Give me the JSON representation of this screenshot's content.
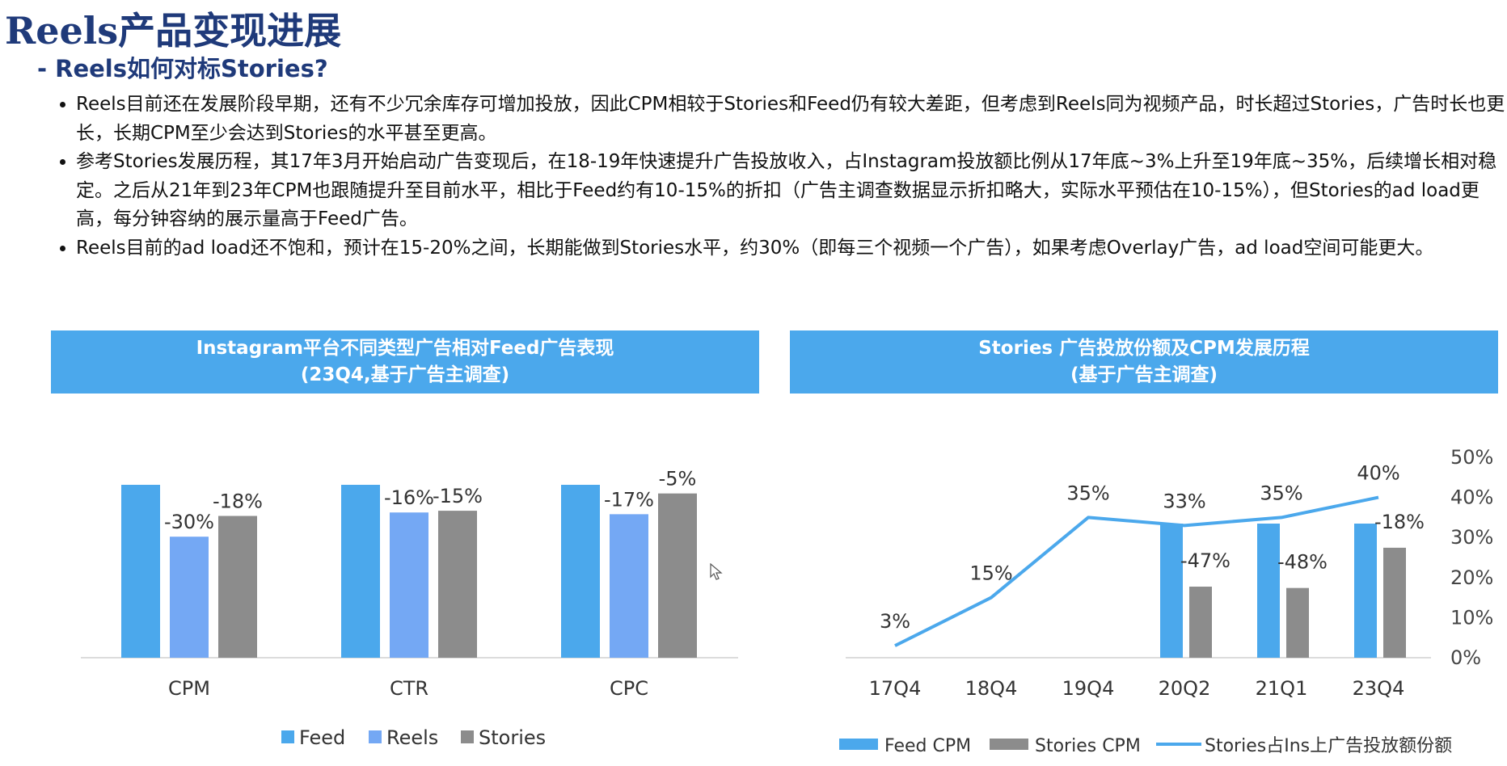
{
  "page": {
    "title": "Reels产品变现进展",
    "subtitle": "- Reels如何对标Stories?",
    "bullets": [
      "Reels目前还在发展阶段早期，还有不少冗余库存可增加投放，因此CPM相较于Stories和Feed仍有较大差距，但考虑到Reels同为视频产品，时长超过Stories，广告时长也更长，长期CPM至少会达到Stories的水平甚至更高。",
      "参考Stories发展历程，其17年3月开始启动广告变现后，在18-19年快速提升广告投放收入，占Instagram投放额比例从17年底~3%上升至19年底~35%，后续增长相对稳定。之后从21年到23年CPM也跟随提升至目前水平，相比于Feed约有10-15%的折扣（广告主调查数据显示折扣略大，实际水平预估在10-15%），但Stories的ad load更高，每分钟容纳的展示量高于Feed广告。",
      "Reels目前的ad load还不饱和，预计在15-20%之间，长期能做到Stories水平，约30%（即每三个视频一个广告），如果考虑Overlay广告，ad load空间可能更大。"
    ]
  },
  "chart_headers": {
    "left": {
      "line1": "Instagram平台不同类型广告相对Feed广告表现",
      "line2": "(23Q4,基于广告主调查)"
    },
    "right": {
      "line1": "Stories 广告投放份额及CPM发展历程",
      "line2": "(基于广告主调查)"
    }
  },
  "colors": {
    "feed": "#4ba8ec",
    "reels": "#74a8f4",
    "stories": "#8c8c8c",
    "line": "#4ba8ec",
    "title": "#1f3a7a",
    "header_bg": "#4ba8ec"
  },
  "chart_data": [
    {
      "type": "bar",
      "categories": [
        "CPM",
        "CTR",
        "CPC"
      ],
      "series": [
        {
          "name": "Feed",
          "values": [
            100,
            100,
            100
          ],
          "labels": [
            "",
            "",
            ""
          ]
        },
        {
          "name": "Reels",
          "values": [
            70,
            84,
            83
          ],
          "labels": [
            "-30%",
            "-16%",
            "-17%"
          ]
        },
        {
          "name": "Stories",
          "values": [
            82,
            85,
            95
          ],
          "labels": [
            "-18%",
            "-15%",
            "-5%"
          ]
        }
      ],
      "legend_position": "bottom",
      "grid": false
    },
    {
      "type": "bar+line",
      "categories": [
        "17Q4",
        "18Q4",
        "19Q4",
        "20Q2",
        "21Q1",
        "23Q4"
      ],
      "bars": [
        {
          "name": "Feed CPM",
          "values": [
            null,
            null,
            null,
            100,
            100,
            100
          ]
        },
        {
          "name": "Stories CPM",
          "values": [
            null,
            null,
            null,
            53,
            52,
            82
          ],
          "labels": [
            "",
            "",
            "",
            "-47%",
            "-48%",
            "-18%"
          ]
        }
      ],
      "line": {
        "name": "Stories占Ins上广告投放额份额",
        "values": [
          3,
          15,
          35,
          33,
          35,
          40
        ],
        "labels": [
          "3%",
          "15%",
          "35%",
          "33%",
          "35%",
          "40%"
        ]
      },
      "y2_axis": {
        "ticks": [
          "0%",
          "10%",
          "20%",
          "30%",
          "40%",
          "50%"
        ],
        "ylim": [
          0,
          50
        ]
      },
      "legend_position": "bottom",
      "grid": false
    }
  ]
}
